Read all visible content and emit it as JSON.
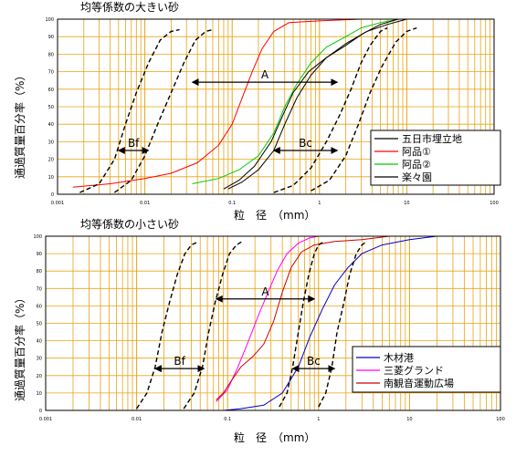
{
  "colors": {
    "grid": "#E8A317",
    "axis": "#000000"
  },
  "charts": [
    {
      "title": "均等係数の大きい砂",
      "xlabel": "粒　径　（mm）",
      "ylabel": "通過質量百分率（%）",
      "x_ticks": [
        "0.001",
        "0.01",
        "0.1",
        "1",
        "10",
        "100"
      ],
      "y_ticks": [
        "0",
        "10",
        "20",
        "30",
        "40",
        "50",
        "60",
        "70",
        "80",
        "90",
        "100"
      ],
      "legend": [
        "五日市埋立地",
        "阿品①",
        "阿品②",
        "楽々園"
      ],
      "annotations": [
        "A",
        "Bf",
        "Bc"
      ]
    },
    {
      "title": "均等係数の小さい砂",
      "xlabel": "粒　径　（mm）",
      "ylabel": "通過質量百分率（%）",
      "x_ticks": [
        "0.001",
        "0.01",
        "0.1",
        "1",
        "10",
        "100"
      ],
      "y_ticks": [
        "0",
        "10",
        "20",
        "30",
        "40",
        "50",
        "60",
        "70",
        "80",
        "90",
        "100"
      ],
      "legend": [
        "木材港",
        "三菱グランド",
        "南観音運動広場"
      ],
      "annotations": [
        "A",
        "Bf",
        "Bc"
      ]
    }
  ],
  "chart_data": [
    {
      "type": "line",
      "title": "均等係数の大きい砂",
      "xlabel": "粒　径　（mm）",
      "ylabel": "通過質量百分率（%）",
      "xscale": "log",
      "xlim": [
        0.001,
        100
      ],
      "ylim": [
        0,
        100
      ],
      "grid": true,
      "legend_position": "bottom-right",
      "series": [
        {
          "name": "五日市埋立地",
          "color": "#000000",
          "style": "solid",
          "points": [
            [
              0.09,
              3
            ],
            [
              0.13,
              7
            ],
            [
              0.2,
              14
            ],
            [
              0.3,
              25
            ],
            [
              0.4,
              40
            ],
            [
              0.55,
              55
            ],
            [
              0.8,
              68
            ],
            [
              1.2,
              78
            ],
            [
              2,
              86
            ],
            [
              3.5,
              93
            ],
            [
              6,
              97
            ],
            [
              10,
              100
            ]
          ]
        },
        {
          "name": "阿品①",
          "color": "#FF0000",
          "style": "solid",
          "points": [
            [
              0.0015,
              4
            ],
            [
              0.004,
              6
            ],
            [
              0.01,
              9
            ],
            [
              0.02,
              12
            ],
            [
              0.04,
              18
            ],
            [
              0.07,
              28
            ],
            [
              0.1,
              40
            ],
            [
              0.13,
              55
            ],
            [
              0.17,
              70
            ],
            [
              0.22,
              83
            ],
            [
              0.3,
              93
            ],
            [
              0.45,
              98
            ],
            [
              1,
              99
            ],
            [
              3,
              100
            ]
          ]
        },
        {
          "name": "阿品②",
          "color": "#00CC00",
          "style": "solid",
          "points": [
            [
              0.035,
              6
            ],
            [
              0.07,
              9
            ],
            [
              0.12,
              14
            ],
            [
              0.2,
              22
            ],
            [
              0.3,
              35
            ],
            [
              0.4,
              50
            ],
            [
              0.55,
              63
            ],
            [
              0.8,
              75
            ],
            [
              1.2,
              84
            ],
            [
              2,
              90
            ],
            [
              3,
              95
            ],
            [
              5,
              98
            ],
            [
              8,
              100
            ]
          ]
        },
        {
          "name": "楽々園",
          "color": "#000000",
          "style": "solid",
          "points": [
            [
              0.08,
              3
            ],
            [
              0.12,
              8
            ],
            [
              0.18,
              16
            ],
            [
              0.28,
              30
            ],
            [
              0.38,
              45
            ],
            [
              0.5,
              58
            ],
            [
              0.75,
              70
            ],
            [
              1.2,
              78
            ],
            [
              2,
              85
            ],
            [
              3.2,
              92
            ],
            [
              5,
              97
            ],
            [
              8,
              100
            ]
          ]
        },
        {
          "name": "",
          "color": "#000000",
          "style": "dashed",
          "points": [
            [
              0.0018,
              1
            ],
            [
              0.003,
              6
            ],
            [
              0.0045,
              20
            ],
            [
              0.006,
              40
            ],
            [
              0.008,
              58
            ],
            [
              0.011,
              75
            ],
            [
              0.015,
              88
            ],
            [
              0.02,
              93
            ],
            [
              0.025,
              94
            ]
          ]
        },
        {
          "name": "",
          "color": "#000000",
          "style": "dashed",
          "points": [
            [
              0.0045,
              1
            ],
            [
              0.007,
              8
            ],
            [
              0.01,
              22
            ],
            [
              0.014,
              40
            ],
            [
              0.02,
              58
            ],
            [
              0.028,
              75
            ],
            [
              0.038,
              88
            ],
            [
              0.05,
              93
            ],
            [
              0.06,
              94
            ]
          ]
        },
        {
          "name": "",
          "color": "#000000",
          "style": "dashed",
          "points": [
            [
              0.3,
              1
            ],
            [
              0.5,
              5
            ],
            [
              0.8,
              15
            ],
            [
              1.2,
              30
            ],
            [
              1.7,
              45
            ],
            [
              2.3,
              60
            ],
            [
              3,
              75
            ],
            [
              3.8,
              85
            ],
            [
              5,
              93
            ],
            [
              6,
              95
            ]
          ]
        },
        {
          "name": "",
          "color": "#000000",
          "style": "dashed",
          "points": [
            [
              0.8,
              2
            ],
            [
              1.3,
              8
            ],
            [
              2,
              22
            ],
            [
              2.8,
              40
            ],
            [
              3.8,
              58
            ],
            [
              5.2,
              73
            ],
            [
              7.5,
              87
            ],
            [
              10,
              93
            ],
            [
              13,
              95
            ]
          ]
        }
      ],
      "annotations": [
        {
          "label": "A",
          "type": "double_arrow",
          "x": [
            0.035,
            1.6
          ],
          "y": 64
        },
        {
          "label": "Bf",
          "type": "double_arrow",
          "x": [
            0.005,
            0.011
          ],
          "y": 25
        },
        {
          "label": "Bc",
          "type": "double_arrow",
          "x": [
            0.3,
            1.6
          ],
          "y": 25
        }
      ]
    },
    {
      "type": "line",
      "title": "均等係数の小さい砂",
      "xlabel": "粒　径　（mm）",
      "ylabel": "通過質量百分率（%）",
      "xscale": "log",
      "xlim": [
        0.001,
        100
      ],
      "ylim": [
        0,
        100
      ],
      "grid": true,
      "legend_position": "bottom-right",
      "series": [
        {
          "name": "木材港",
          "color": "#0000CC",
          "style": "solid",
          "points": [
            [
              0.09,
              0
            ],
            [
              0.14,
              1
            ],
            [
              0.25,
              3
            ],
            [
              0.4,
              10
            ],
            [
              0.6,
              25
            ],
            [
              0.8,
              42
            ],
            [
              1.1,
              58
            ],
            [
              1.5,
              72
            ],
            [
              2.1,
              82
            ],
            [
              3,
              90
            ],
            [
              5,
              95
            ],
            [
              10,
              98
            ],
            [
              20,
              100
            ]
          ]
        },
        {
          "name": "三菱グランド",
          "color": "#FF00FF",
          "style": "solid",
          "points": [
            [
              0.075,
              5
            ],
            [
              0.1,
              12
            ],
            [
              0.13,
              25
            ],
            [
              0.17,
              40
            ],
            [
              0.22,
              55
            ],
            [
              0.28,
              68
            ],
            [
              0.35,
              80
            ],
            [
              0.45,
              90
            ],
            [
              0.6,
              96
            ],
            [
              0.8,
              99
            ],
            [
              1,
              100
            ]
          ]
        },
        {
          "name": "南観音運動広場",
          "color": "#CC0000",
          "style": "solid",
          "points": [
            [
              0.075,
              6
            ],
            [
              0.09,
              10
            ],
            [
              0.11,
              17
            ],
            [
              0.14,
              25
            ],
            [
              0.19,
              31
            ],
            [
              0.25,
              38
            ],
            [
              0.32,
              51
            ],
            [
              0.4,
              68
            ],
            [
              0.5,
              82
            ],
            [
              0.65,
              91
            ],
            [
              0.9,
              95
            ],
            [
              1.5,
              97
            ],
            [
              3,
              98
            ],
            [
              6,
              100
            ]
          ]
        },
        {
          "name": "",
          "color": "#000000",
          "style": "dashed",
          "points": [
            [
              0.01,
              1
            ],
            [
              0.013,
              10
            ],
            [
              0.016,
              25
            ],
            [
              0.019,
              45
            ],
            [
              0.023,
              62
            ],
            [
              0.028,
              78
            ],
            [
              0.034,
              90
            ],
            [
              0.04,
              95
            ],
            [
              0.048,
              97
            ]
          ]
        },
        {
          "name": "",
          "color": "#000000",
          "style": "dashed",
          "points": [
            [
              0.033,
              1
            ],
            [
              0.043,
              10
            ],
            [
              0.053,
              25
            ],
            [
              0.062,
              45
            ],
            [
              0.073,
              62
            ],
            [
              0.088,
              78
            ],
            [
              0.105,
              90
            ],
            [
              0.125,
              95
            ],
            [
              0.145,
              97
            ]
          ]
        },
        {
          "name": "",
          "color": "#000000",
          "style": "dashed",
          "points": [
            [
              0.37,
              2
            ],
            [
              0.45,
              10
            ],
            [
              0.52,
              25
            ],
            [
              0.6,
              45
            ],
            [
              0.68,
              62
            ],
            [
              0.78,
              78
            ],
            [
              0.9,
              90
            ],
            [
              1,
              95
            ],
            [
              1.15,
              97
            ]
          ]
        },
        {
          "name": "",
          "color": "#000000",
          "style": "dashed",
          "points": [
            [
              1,
              2
            ],
            [
              1.2,
              10
            ],
            [
              1.4,
              25
            ],
            [
              1.6,
              45
            ],
            [
              1.9,
              62
            ],
            [
              2.2,
              78
            ],
            [
              2.6,
              90
            ],
            [
              3,
              95
            ],
            [
              3.4,
              97
            ]
          ]
        }
      ],
      "annotations": [
        {
          "label": "A",
          "type": "double_arrow",
          "x": [
            0.075,
            0.9
          ],
          "y": 64
        },
        {
          "label": "Bf",
          "type": "double_arrow",
          "x": [
            0.016,
            0.055
          ],
          "y": 24
        },
        {
          "label": "Bc",
          "type": "double_arrow",
          "x": [
            0.52,
            1.5
          ],
          "y": 24
        }
      ]
    }
  ]
}
